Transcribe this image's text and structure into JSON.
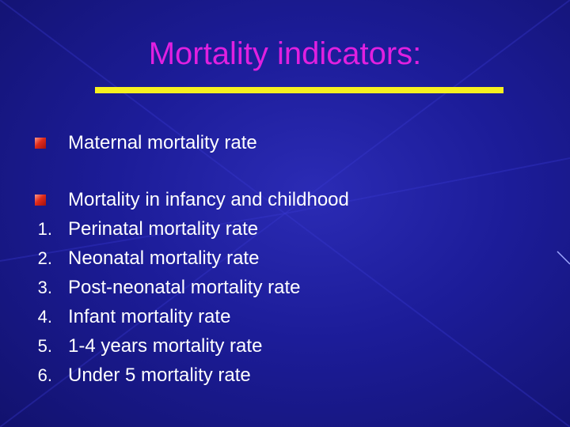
{
  "slide": {
    "title": "Mortality indicators:",
    "colors": {
      "background": "#1c1c98",
      "title": "#e020e0",
      "rule": "#f7f020",
      "text": "#ffffff",
      "bullet": "#e02a1a"
    },
    "bullets": [
      {
        "text": "Maternal mortality rate",
        "icon": "red-square-bullet-icon"
      },
      {
        "text": "Mortality in infancy and childhood",
        "icon": "red-square-bullet-icon"
      }
    ],
    "numbered": [
      {
        "num": "1.",
        "text": "Perinatal mortality rate"
      },
      {
        "num": "2.",
        "text": "Neonatal mortality rate"
      },
      {
        "num": "3.",
        "text": "Post-neonatal mortality rate"
      },
      {
        "num": "4.",
        "text": "Infant mortality rate"
      },
      {
        "num": "5.",
        "text": "1-4 years mortality rate"
      },
      {
        "num": "6.",
        "text": "Under 5 mortality rate"
      }
    ]
  }
}
